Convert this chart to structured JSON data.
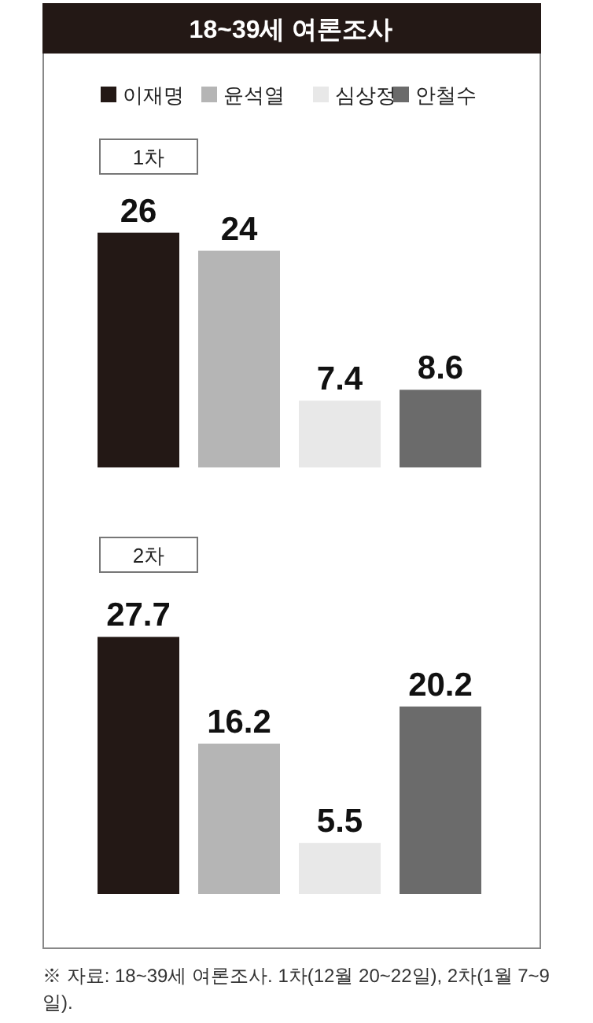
{
  "chart_data": [
    {
      "type": "bar",
      "title": "18~39세 여론조사",
      "subtitle": "1차",
      "categories": [
        null
      ],
      "legend": "top",
      "data_labels": true,
      "series": [
        {
          "name": "이재명",
          "color": "#231815",
          "values": [
            26
          ]
        },
        {
          "name": "윤석열",
          "color": "#b5b5b5",
          "values": [
            24
          ]
        },
        {
          "name": "심상정",
          "color": "#e8e8e8",
          "values": [
            7.4
          ]
        },
        {
          "name": "안철수",
          "color": "#6b6b6b",
          "values": [
            8.6
          ]
        }
      ]
    },
    {
      "type": "bar",
      "title": "2차",
      "categories": [
        null
      ],
      "data_labels": true,
      "series": [
        {
          "color": "#231815",
          "values": [
            27.7
          ]
        },
        {
          "color": "#b5b5b5",
          "values": [
            16.2
          ]
        },
        {
          "color": "#e8e8e8",
          "values": [
            5.5
          ]
        },
        {
          "color": "#6b6b6b",
          "values": [
            20.2
          ]
        }
      ],
      "annotations": [
        "※ 자료: 18~39세 여론조사. 1차(12월 20~22일), 2차(1월 7~9일)."
      ]
    }
  ]
}
